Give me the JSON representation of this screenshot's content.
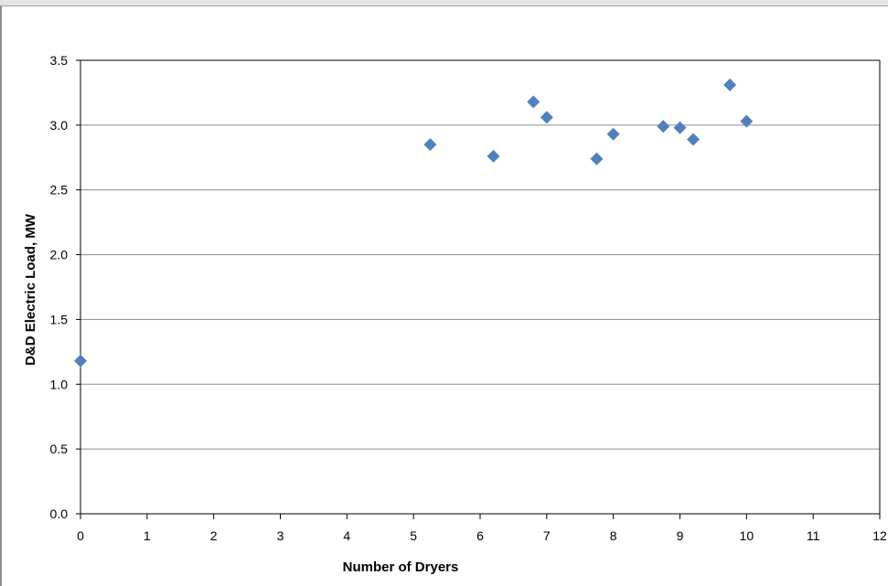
{
  "chart_data": {
    "type": "scatter",
    "title": "",
    "xlabel": "Number of Dryers",
    "ylabel": "D&D Electric Load, MW",
    "xlim": [
      0,
      12
    ],
    "ylim": [
      0.0,
      3.5
    ],
    "x_ticks": [
      "0",
      "1",
      "2",
      "3",
      "4",
      "5",
      "6",
      "7",
      "8",
      "9",
      "10",
      "11",
      "12"
    ],
    "y_ticks": [
      "0.0",
      "0.5",
      "1.0",
      "1.5",
      "2.0",
      "2.5",
      "3.0",
      "3.5"
    ],
    "grid": "horizontal",
    "legend": "none",
    "marker": "diamond",
    "colors": {
      "marker": "#4f81bd",
      "grid": "#8c8c8c",
      "axis": "#000000"
    },
    "series": [
      {
        "points": [
          {
            "x": 0,
            "y": 1.18
          },
          {
            "x": 5.25,
            "y": 2.85
          },
          {
            "x": 6.2,
            "y": 2.76
          },
          {
            "x": 6.8,
            "y": 3.18
          },
          {
            "x": 7.0,
            "y": 3.06
          },
          {
            "x": 7.75,
            "y": 2.74
          },
          {
            "x": 8.0,
            "y": 2.93
          },
          {
            "x": 8.75,
            "y": 2.99
          },
          {
            "x": 9.0,
            "y": 2.98
          },
          {
            "x": 9.2,
            "y": 2.89
          },
          {
            "x": 9.75,
            "y": 3.31
          },
          {
            "x": 10.0,
            "y": 3.03
          }
        ]
      }
    ]
  }
}
